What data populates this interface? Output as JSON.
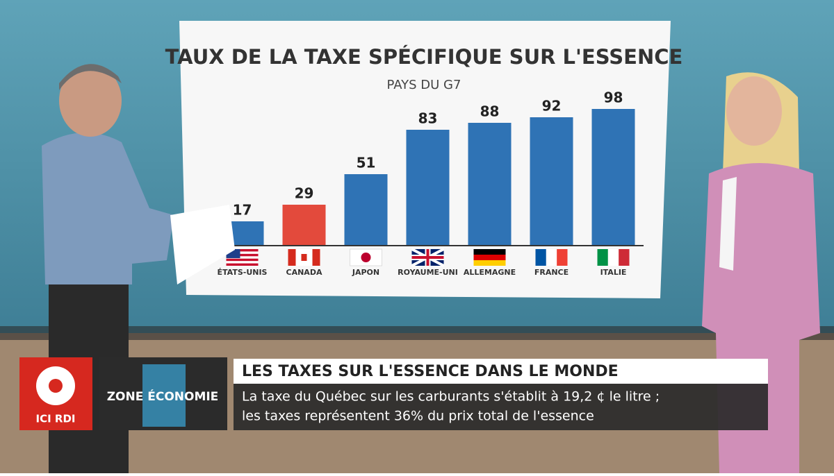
{
  "chart_data": {
    "type": "bar",
    "title": "TAUX DE LA TAXE SPÉCIFIQUE SUR L'ESSENCE",
    "subtitle": "PAYS DU G7",
    "categories": [
      "ÉTATS-UNIS",
      "CANADA",
      "JAPON",
      "ROYAUME-UNI",
      "ALLEMAGNE",
      "FRANCE",
      "ITALIE"
    ],
    "values": [
      17,
      29,
      51,
      83,
      88,
      92,
      98
    ],
    "colors": [
      "#2f73b5",
      "#e34a3c",
      "#2f73b5",
      "#2f73b5",
      "#2f73b5",
      "#2f73b5",
      "#2f73b5"
    ]
  },
  "broadcast": {
    "logo": "ICI RDI",
    "program": "ZONE ÉCONOMIE",
    "headline": "LES TAXES SUR L'ESSENCE DANS LE MONDE",
    "lines": [
      "La taxe du Québec sur les carburants s'établit à 19,2 ¢ le litre ;",
      "les taxes représentent 36% du prix total de l'essence"
    ]
  }
}
